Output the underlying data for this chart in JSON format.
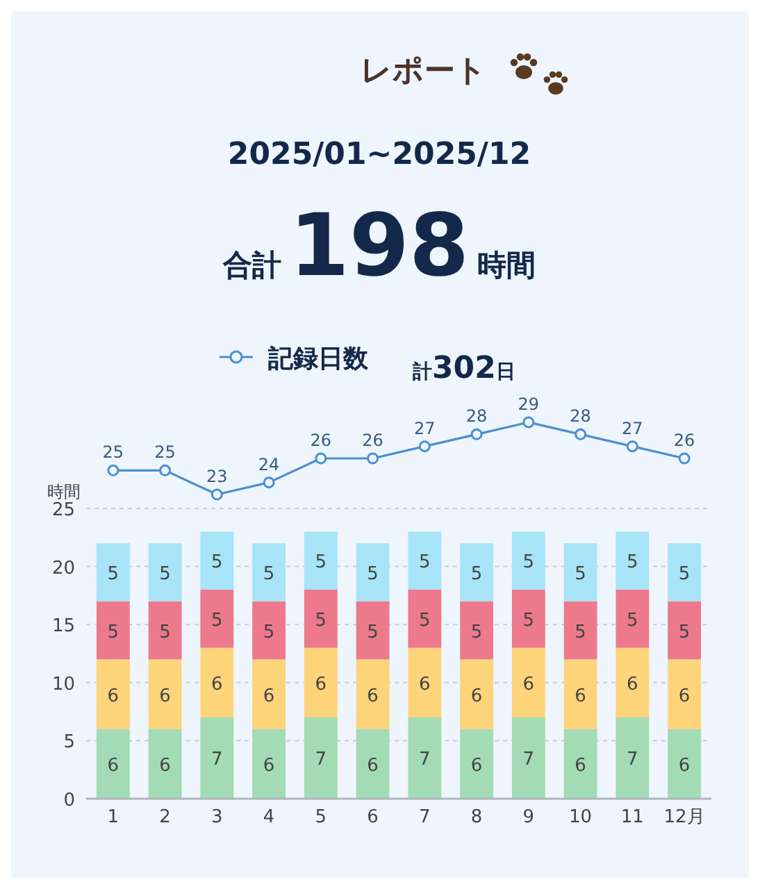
{
  "chart_data": [
    {
      "type": "line",
      "title": "レポート",
      "subtitle": "2025/01~2025/12",
      "annotations": [
        "合計198時間",
        "計302日"
      ],
      "categories": [
        null,
        null,
        null,
        null,
        null,
        null,
        null,
        null,
        null,
        null,
        null,
        null
      ],
      "legend": "top",
      "marker": "circle",
      "line_style": "solid",
      "series": [
        {
          "name": "記録日数",
          "color": "#4a8fd0",
          "values": [
            25,
            25,
            23,
            24,
            26,
            26,
            27,
            28,
            29,
            28,
            27,
            26
          ]
        }
      ],
      "data_labels": true
    },
    {
      "type": "bar",
      "ylabel": "時間",
      "categories": [
        "1",
        "2",
        "3",
        "4",
        "5",
        "6",
        "7",
        "8",
        "9",
        "10",
        "11",
        "12月"
      ],
      "stacked": true,
      "ylim": [
        0,
        25
      ],
      "yticks": [
        0,
        5,
        10,
        15,
        20,
        25
      ],
      "grid": "y",
      "data_labels": true,
      "series": [
        {
          "color": "#a3dbb5",
          "values": [
            6,
            6,
            7,
            6,
            7,
            6,
            7,
            6,
            7,
            6,
            7,
            6
          ]
        },
        {
          "color": "#fdd47a",
          "values": [
            6,
            6,
            6,
            6,
            6,
            6,
            6,
            6,
            6,
            6,
            6,
            6
          ]
        },
        {
          "color": "#ec7a8c",
          "values": [
            5,
            5,
            5,
            5,
            5,
            5,
            5,
            5,
            5,
            5,
            5,
            5
          ]
        },
        {
          "color": "#a8e4f7",
          "values": [
            5,
            5,
            5,
            5,
            5,
            5,
            5,
            5,
            5,
            5,
            5,
            5
          ]
        }
      ]
    }
  ]
}
